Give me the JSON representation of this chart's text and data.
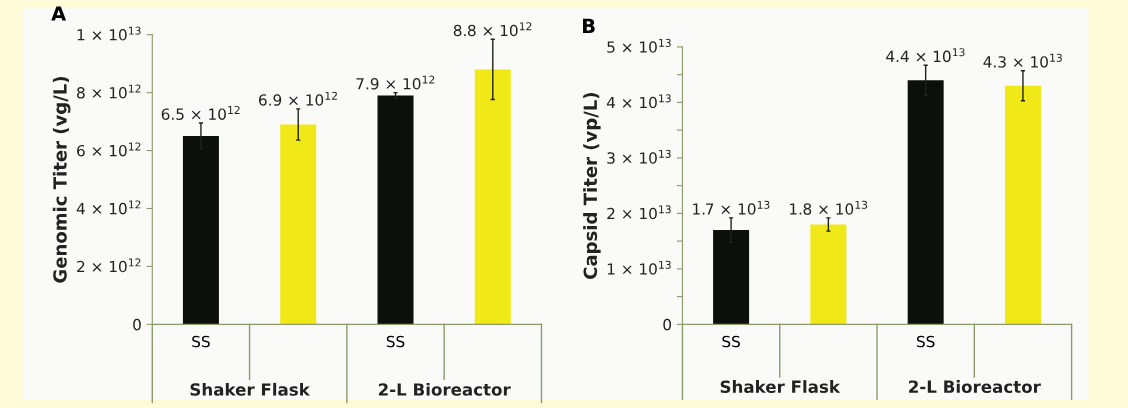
{
  "chart_data": [
    {
      "type": "bar",
      "title": "A",
      "ylabel": "Genomic Titer (vg/L)",
      "categories": [
        "SS",
        null,
        "SS",
        null
      ],
      "values": [
        6500000000000.0,
        6900000000000.0,
        7900000000000.0,
        8800000000000.0
      ],
      "colors": [
        "#0d0f0b",
        "#f0e817",
        "#0d0f0b",
        "#f0e817"
      ],
      "errors": [
        450000000000.0,
        540000000000.0,
        100000000000.0,
        1040000000000.0
      ],
      "value_labels": [
        "6.5 × 10$^{12}$",
        "6.9 × 10$^{12}$",
        "7.9 × 10$^{12}$",
        "8.8 × 10$^{12}$"
      ],
      "ylim": [
        0,
        10000000000000.0
      ],
      "yticks": [
        0,
        {
          "value": 2000000000000.0,
          "label": "2 × 10$^{12}$"
        },
        {
          "value": 4000000000000.0,
          "label": "4 × 10$^{12}$"
        },
        {
          "value": 6000000000000.0,
          "label": "6 × 10$^{12}$"
        },
        {
          "value": 8000000000000.0,
          "label": "8 × 10$^{12}$"
        },
        {
          "value": 10000000000000.0,
          "label": "1 × 10$^{13}$"
        }
      ],
      "annotations": [
        "Shaker Flask",
        "2-L Bioreactor"
      ],
      "grid": false,
      "legend": false
    },
    {
      "type": "bar",
      "title": "B",
      "ylabel": "Capsid Titer (vp/L)",
      "categories": [
        "SS",
        null,
        "SS",
        null
      ],
      "values": [
        17000000000000.0,
        18000000000000.0,
        44000000000000.0,
        43000000000000.0
      ],
      "colors": [
        "#0d0f0b",
        "#f0e817",
        "#0d0f0b",
        "#f0e817"
      ],
      "errors": [
        2200000000000.0,
        1200000000000.0,
        2700000000000.0,
        2700000000000.0
      ],
      "value_labels": [
        "1.7 × 10$^{13}$",
        "1.8 × 10$^{13}$",
        "4.4 × 10$^{13}$",
        "4.3 × 10$^{13}$"
      ],
      "ylim": [
        0,
        50000000000000.0
      ],
      "yticks": [
        0,
        {
          "value": 5000000000000.0,
          "label": null
        },
        {
          "value": 10000000000000.0,
          "label": "1 × 10$^{13}$"
        },
        {
          "value": 15000000000000.0,
          "label": null
        },
        {
          "value": 20000000000000.0,
          "label": "2 × 10$^{13}$"
        },
        {
          "value": 25000000000000.0,
          "label": null
        },
        {
          "value": 30000000000000.0,
          "label": "3 × 10$^{13}$"
        },
        {
          "value": 35000000000000.0,
          "label": null
        },
        {
          "value": 40000000000000.0,
          "label": "4 × 10$^{13}$"
        },
        {
          "value": 45000000000000.0,
          "label": null
        },
        {
          "value": 50000000000000.0,
          "label": "5 × 10$^{13}$"
        }
      ],
      "annotations": [
        "Shaker Flask",
        "2-L Bioreactor"
      ],
      "grid": false,
      "legend": false
    }
  ]
}
